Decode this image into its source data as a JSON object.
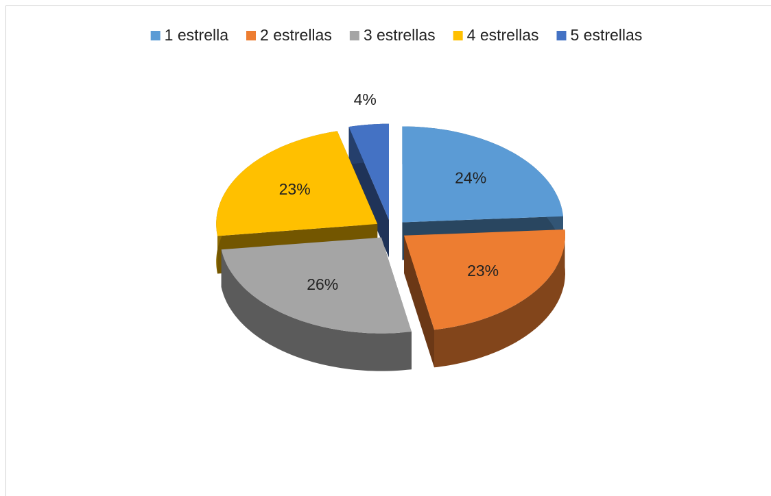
{
  "chart_data": {
    "type": "pie3d",
    "categories": [
      "1 estrella",
      "2 estrellas",
      "3 estrellas",
      "4 estrellas",
      "5 estrellas"
    ],
    "values": [
      24,
      23,
      26,
      23,
      4
    ],
    "value_labels": [
      "24%",
      "23%",
      "26%",
      "23%",
      "4%"
    ],
    "colors": [
      "#5b9bd5",
      "#ed7d31",
      "#a5a5a5",
      "#ffc000",
      "#4472c4"
    ],
    "legend": "top"
  }
}
